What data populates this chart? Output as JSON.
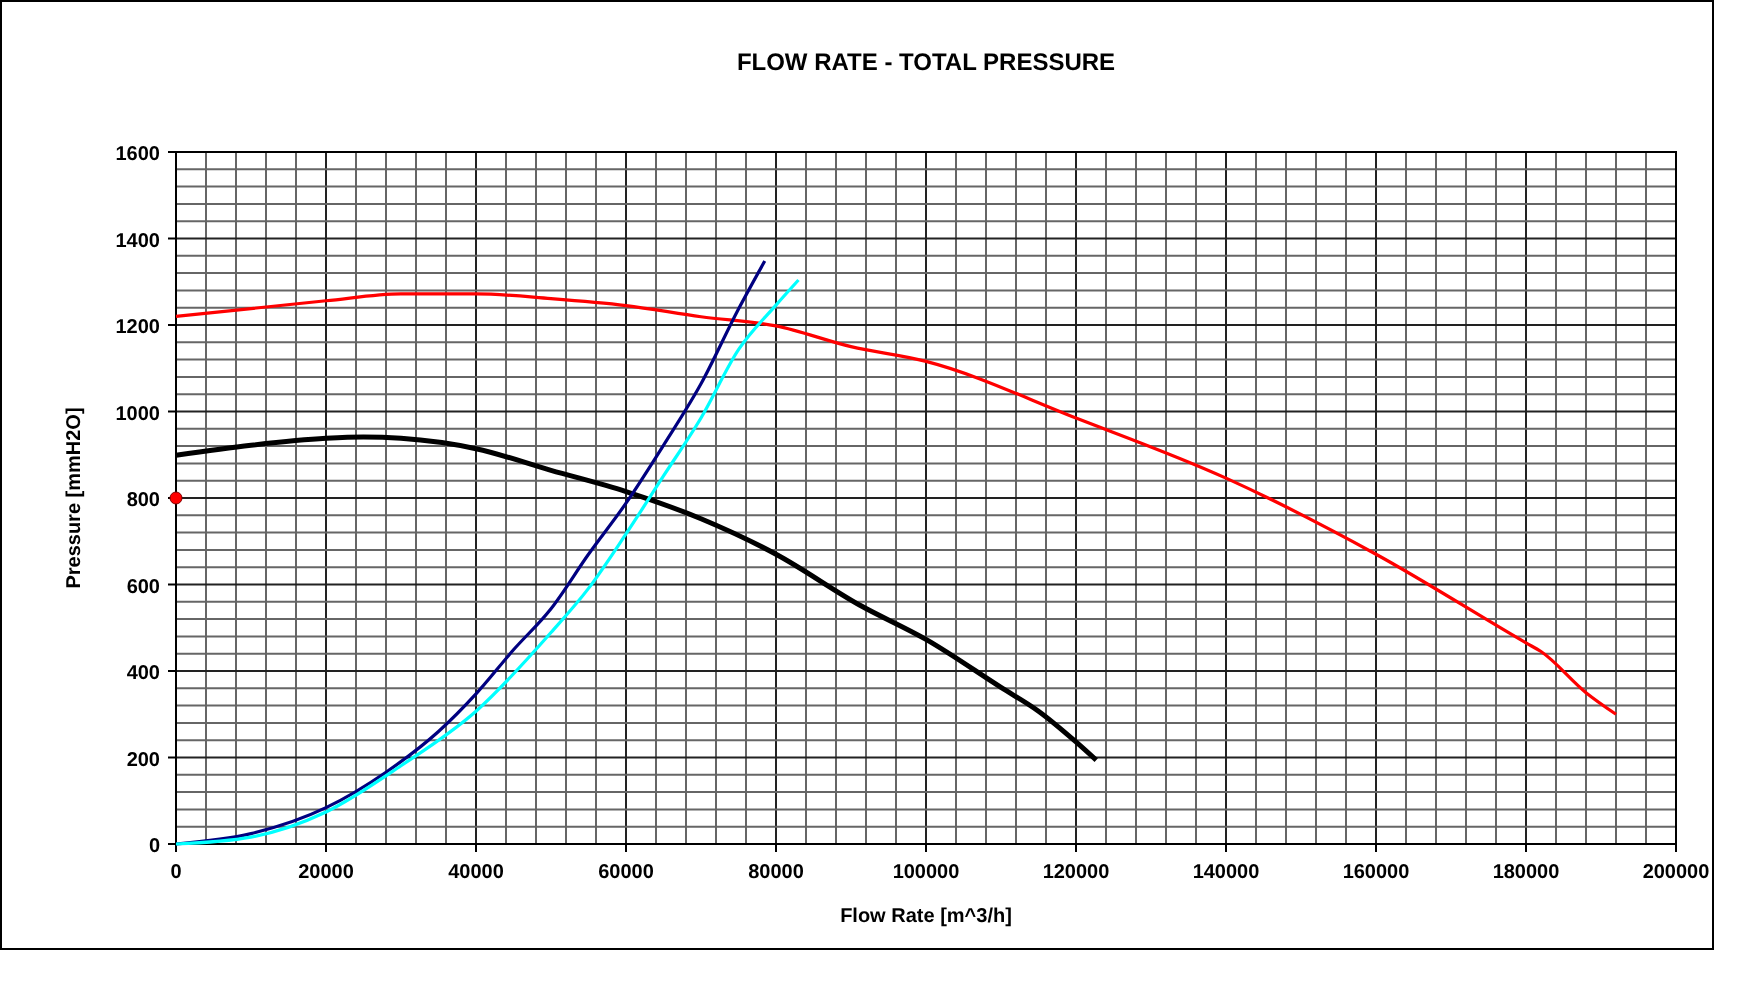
{
  "chart_data": {
    "type": "line",
    "title": "FLOW RATE - TOTAL PRESSURE",
    "xlabel": "Flow Rate   [m^3/h]",
    "ylabel": "Pressure   [mmH2O]",
    "xlim": [
      0,
      200000
    ],
    "ylim": [
      0,
      1600
    ],
    "xticks": [
      0,
      {
        "value": 4000,
        "label": null
      },
      {
        "value": 8000,
        "label": null
      },
      {
        "value": 12000,
        "label": null
      },
      {
        "value": 16000,
        "label": null
      },
      20000,
      {
        "value": 24000,
        "label": null
      },
      {
        "value": 28000,
        "label": null
      },
      {
        "value": 32000,
        "label": null
      },
      {
        "value": 36000,
        "label": null
      },
      40000,
      {
        "value": 44000,
        "label": null
      },
      {
        "value": 48000,
        "label": null
      },
      {
        "value": 52000,
        "label": null
      },
      {
        "value": 56000,
        "label": null
      },
      60000,
      {
        "value": 64000,
        "label": null
      },
      {
        "value": 68000,
        "label": null
      },
      {
        "value": 72000,
        "label": null
      },
      {
        "value": 76000,
        "label": null
      },
      80000,
      {
        "value": 84000,
        "label": null
      },
      {
        "value": 88000,
        "label": null
      },
      {
        "value": 92000,
        "label": null
      },
      {
        "value": 96000,
        "label": null
      },
      100000,
      {
        "value": 104000,
        "label": null
      },
      {
        "value": 108000,
        "label": null
      },
      {
        "value": 112000,
        "label": null
      },
      {
        "value": 116000,
        "label": null
      },
      120000,
      {
        "value": 124000,
        "label": null
      },
      {
        "value": 128000,
        "label": null
      },
      {
        "value": 132000,
        "label": null
      },
      {
        "value": 136000,
        "label": null
      },
      140000,
      {
        "value": 144000,
        "label": null
      },
      {
        "value": 148000,
        "label": null
      },
      {
        "value": 152000,
        "label": null
      },
      {
        "value": 156000,
        "label": null
      },
      160000,
      {
        "value": 164000,
        "label": null
      },
      {
        "value": 168000,
        "label": null
      },
      {
        "value": 172000,
        "label": null
      },
      {
        "value": 176000,
        "label": null
      },
      180000,
      {
        "value": 184000,
        "label": null
      },
      {
        "value": 188000,
        "label": null
      },
      {
        "value": 192000,
        "label": null
      },
      {
        "value": 196000,
        "label": null
      },
      200000
    ],
    "yticks": [
      0,
      {
        "value": 40,
        "label": null
      },
      {
        "value": 80,
        "label": null
      },
      {
        "value": 120,
        "label": null
      },
      {
        "value": 160,
        "label": null
      },
      200,
      {
        "value": 240,
        "label": null
      },
      {
        "value": 280,
        "label": null
      },
      {
        "value": 320,
        "label": null
      },
      {
        "value": 360,
        "label": null
      },
      400,
      {
        "value": 440,
        "label": null
      },
      {
        "value": 480,
        "label": null
      },
      {
        "value": 520,
        "label": null
      },
      {
        "value": 560,
        "label": null
      },
      600,
      {
        "value": 640,
        "label": null
      },
      {
        "value": 680,
        "label": null
      },
      {
        "value": 720,
        "label": null
      },
      {
        "value": 760,
        "label": null
      },
      800,
      {
        "value": 840,
        "label": null
      },
      {
        "value": 880,
        "label": null
      },
      {
        "value": 920,
        "label": null
      },
      {
        "value": 960,
        "label": null
      },
      1000,
      {
        "value": 1040,
        "label": null
      },
      {
        "value": 1080,
        "label": null
      },
      {
        "value": 1120,
        "label": null
      },
      {
        "value": 1160,
        "label": null
      },
      1200,
      {
        "value": 1240,
        "label": null
      },
      {
        "value": 1280,
        "label": null
      },
      {
        "value": 1320,
        "label": null
      },
      {
        "value": 1360,
        "label": null
      },
      1400,
      {
        "value": 1440,
        "label": null
      },
      {
        "value": 1480,
        "label": null
      },
      {
        "value": 1520,
        "label": null
      },
      {
        "value": 1560,
        "label": null
      },
      1600
    ],
    "grid": true,
    "marker": "none",
    "line_style": "solid",
    "series": [
      {
        "color": "#ff0000",
        "x": [
          0,
          20000,
          30000,
          40000,
          50000,
          60000,
          70000,
          80000,
          90000,
          100000,
          120000,
          140000,
          160000,
          180000,
          182000,
          188000,
          192000
        ],
        "values": [
          1220,
          1256,
          1272,
          1272,
          1261,
          1245,
          1219,
          1198,
          1150,
          1116,
          985,
          846,
          670,
          465,
          445,
          350,
          300
        ]
      },
      {
        "color": "#000000",
        "x": [
          0,
          10000,
          20000,
          25000,
          30000,
          40000,
          50000,
          60000,
          70000,
          80000,
          91200,
          100000,
          110000,
          115000,
          120000,
          122700
        ],
        "values": [
          899,
          922,
          938,
          941,
          938,
          914,
          864,
          815,
          752,
          670,
          552,
          473,
          362,
          307,
          236,
          194
        ]
      },
      {
        "color": "#000080",
        "x": [
          0,
          10000,
          20000,
          28000,
          35000,
          40000,
          45000,
          50000,
          55000,
          60000,
          65000,
          70000,
          75000,
          78500
        ],
        "values": [
          0,
          24,
          84,
          166,
          260,
          347,
          449,
          544,
          670,
          788,
          922,
          1064,
          1237,
          1348
        ]
      },
      {
        "color": "#00ffff",
        "x": [
          0,
          10000,
          20000,
          30000,
          40000,
          50000,
          55000,
          60000,
          65000,
          70000,
          75000,
          80000,
          83000
        ],
        "values": [
          0,
          16,
          74,
          181,
          307,
          489,
          591,
          717,
          851,
          985,
          1143,
          1246,
          1304
        ]
      },
      {
        "type": "scatter",
        "marker": "circle",
        "color": "#ff0000",
        "x": [
          0
        ],
        "values": [
          800
        ]
      }
    ]
  }
}
